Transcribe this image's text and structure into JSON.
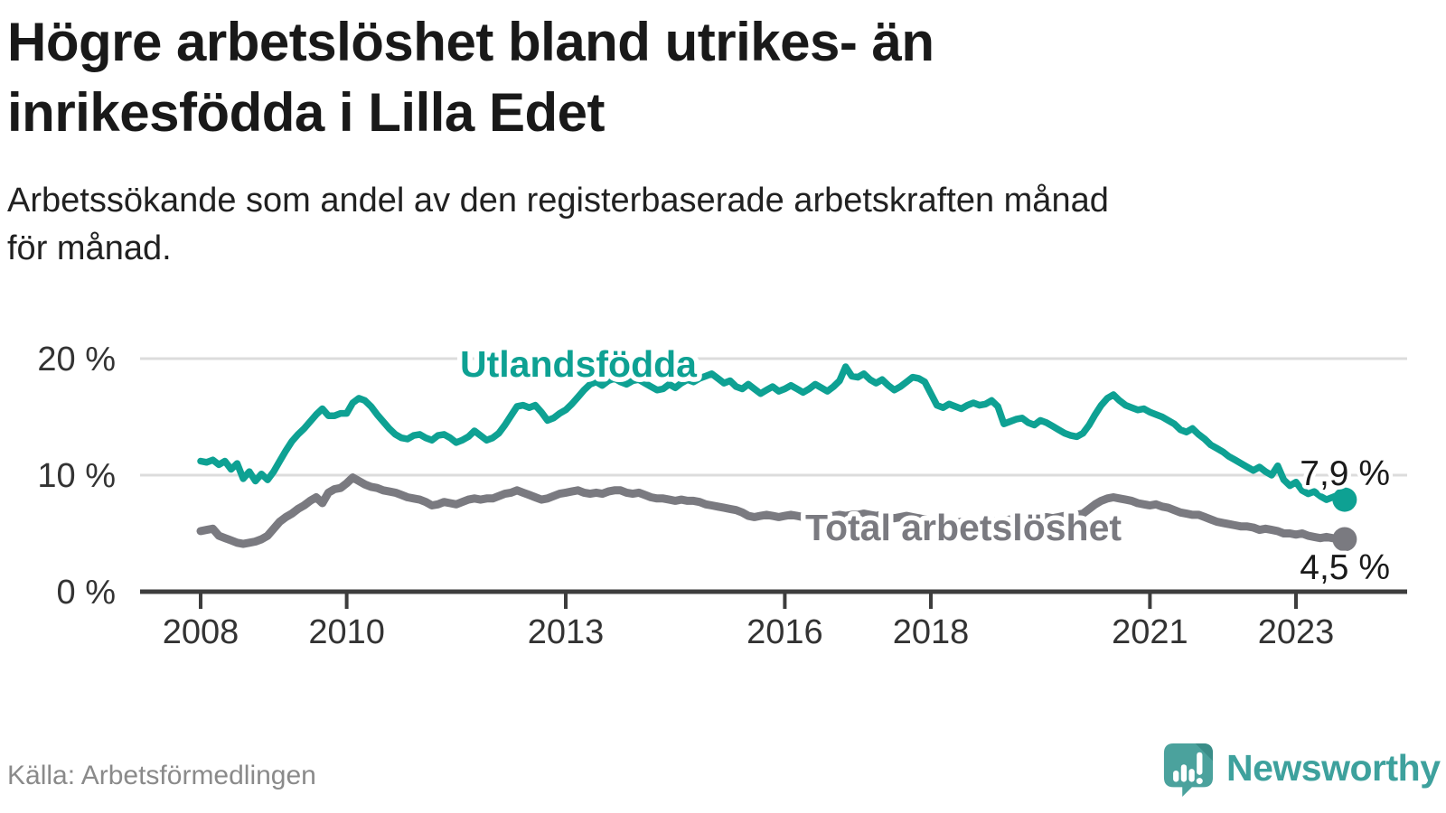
{
  "header": {
    "title_line1": "Högre arbetslöshet bland utrikes- än",
    "title_line2": "inrikesfödda i Lilla Edet",
    "subtitle_line1": "Arbetssökande som andel av den registerbaserade arbetskraften månad",
    "subtitle_line2": "för månad."
  },
  "footer": {
    "source": "Källa: Arbetsförmedlingen",
    "brand": "Newsworthy"
  },
  "colors": {
    "title": "#191919",
    "subtitle": "#212121",
    "axis_text": "#333333",
    "axis_line": "#3d3d3d",
    "gridline": "#dcdcdc",
    "foreign_born_line": "#0EA193",
    "total_line": "#7A7A80",
    "value_label": "#1a1a1a",
    "source_text": "#8a8a8a",
    "brand_teal": "#4BA29D",
    "brand_teal_dark": "#3A8D88",
    "brand_text": "#3EA19D"
  },
  "chart_data": {
    "type": "line",
    "title": "Högre arbetslöshet bland utrikes- än inrikesfödda i Lilla Edet",
    "subtitle": "Arbetssökande som andel av den registerbaserade arbetskraften månad för månad.",
    "xlabel": "",
    "ylabel": "",
    "unit": "%",
    "grid": "horizontal",
    "legend_position": "inline-labels",
    "x_start": {
      "year": 2008,
      "month": 1
    },
    "x_frequency": "monthly",
    "x_ticks": [
      2008,
      2010,
      2013,
      2016,
      2018,
      2021,
      2023
    ],
    "x_tick_labels": [
      "2008",
      "2010",
      "2013",
      "2016",
      "2018",
      "2021",
      "2023"
    ],
    "y_ticks": [
      0,
      10,
      20
    ],
    "y_tick_labels": [
      "0 %",
      "10 %",
      "20 %"
    ],
    "ylim": [
      0,
      21.5
    ],
    "series": [
      {
        "name": "Utlandsfödda",
        "color": "#0EA193",
        "end_value": 7.9,
        "end_label": "7,9 %",
        "values": [
          11.2,
          11.1,
          11.3,
          10.9,
          11.2,
          10.5,
          11.0,
          9.7,
          10.3,
          9.5,
          10.1,
          9.6,
          10.3,
          11.2,
          12.1,
          12.9,
          13.5,
          14.0,
          14.6,
          15.2,
          15.7,
          15.1,
          15.1,
          15.3,
          15.3,
          16.2,
          16.6,
          16.4,
          15.9,
          15.2,
          14.6,
          14.0,
          13.5,
          13.2,
          13.1,
          13.4,
          13.5,
          13.2,
          13.0,
          13.4,
          13.5,
          13.2,
          12.8,
          13.0,
          13.3,
          13.8,
          13.4,
          13.0,
          13.2,
          13.6,
          14.3,
          15.1,
          15.9,
          16.0,
          15.8,
          16.0,
          15.4,
          14.7,
          14.9,
          15.3,
          15.6,
          16.1,
          16.7,
          17.3,
          17.8,
          18.0,
          17.7,
          18.1,
          18.3,
          18.0,
          17.8,
          18.1,
          18.2,
          17.9,
          17.6,
          17.3,
          17.4,
          17.8,
          17.5,
          17.9,
          18.2,
          18.0,
          18.3,
          18.5,
          18.7,
          18.3,
          17.9,
          18.1,
          17.6,
          17.4,
          17.8,
          17.4,
          17.0,
          17.3,
          17.6,
          17.2,
          17.4,
          17.7,
          17.4,
          17.1,
          17.4,
          17.8,
          17.5,
          17.2,
          17.6,
          18.1,
          19.3,
          18.5,
          18.4,
          18.7,
          18.2,
          17.9,
          18.2,
          17.7,
          17.3,
          17.6,
          18.0,
          18.4,
          18.3,
          18.0,
          17.0,
          16.0,
          15.8,
          16.1,
          15.9,
          15.7,
          16.0,
          16.2,
          16.0,
          16.1,
          16.4,
          15.9,
          14.4,
          14.6,
          14.8,
          14.9,
          14.5,
          14.3,
          14.7,
          14.5,
          14.2,
          13.9,
          13.6,
          13.4,
          13.3,
          13.6,
          14.3,
          15.2,
          16.0,
          16.6,
          16.9,
          16.4,
          16.0,
          15.8,
          15.6,
          15.7,
          15.4,
          15.2,
          15.0,
          14.7,
          14.4,
          13.9,
          13.7,
          14.0,
          13.5,
          13.1,
          12.6,
          12.3,
          12.0,
          11.6,
          11.3,
          11.0,
          10.7,
          10.4,
          10.7,
          10.3,
          10.0,
          10.8,
          9.6,
          9.1,
          9.4,
          8.7,
          8.4,
          8.6,
          8.2,
          7.9,
          8.1,
          8.3,
          7.9
        ]
      },
      {
        "name": "Total arbetslöshet",
        "color": "#7A7A80",
        "end_value": 4.5,
        "end_label": "4,5 %",
        "values": [
          5.2,
          5.3,
          5.4,
          4.8,
          4.6,
          4.4,
          4.2,
          4.1,
          4.2,
          4.3,
          4.5,
          4.8,
          5.4,
          6.0,
          6.4,
          6.7,
          7.1,
          7.4,
          7.8,
          8.1,
          7.6,
          8.5,
          8.8,
          8.9,
          9.3,
          9.8,
          9.5,
          9.2,
          9.0,
          8.9,
          8.7,
          8.6,
          8.5,
          8.3,
          8.1,
          8.0,
          7.9,
          7.7,
          7.4,
          7.5,
          7.7,
          7.6,
          7.5,
          7.7,
          7.9,
          8.0,
          7.9,
          8.0,
          8.0,
          8.2,
          8.4,
          8.5,
          8.7,
          8.5,
          8.3,
          8.1,
          7.9,
          8.0,
          8.2,
          8.4,
          8.5,
          8.6,
          8.7,
          8.5,
          8.4,
          8.5,
          8.4,
          8.6,
          8.7,
          8.7,
          8.5,
          8.4,
          8.5,
          8.3,
          8.1,
          8.0,
          8.0,
          7.9,
          7.8,
          7.9,
          7.8,
          7.8,
          7.7,
          7.5,
          7.4,
          7.3,
          7.2,
          7.1,
          7.0,
          6.8,
          6.5,
          6.4,
          6.5,
          6.6,
          6.5,
          6.4,
          6.5,
          6.6,
          6.5,
          6.4,
          6.3,
          6.4,
          6.5,
          6.4,
          6.5,
          6.6,
          6.5,
          6.6,
          6.6,
          6.7,
          6.6,
          6.5,
          6.6,
          6.4,
          6.3,
          6.4,
          6.5,
          6.4,
          6.3,
          6.2,
          6.1,
          6.0,
          6.1,
          6.0,
          5.9,
          6.0,
          6.1,
          6.0,
          5.9,
          6.0,
          6.1,
          6.0,
          6.1,
          6.2,
          6.1,
          6.2,
          6.3,
          6.2,
          6.3,
          6.4,
          6.3,
          6.4,
          6.5,
          6.5,
          6.6,
          6.7,
          7.1,
          7.5,
          7.8,
          8.0,
          8.1,
          8.0,
          7.9,
          7.8,
          7.6,
          7.5,
          7.4,
          7.5,
          7.3,
          7.2,
          7.0,
          6.8,
          6.7,
          6.6,
          6.6,
          6.4,
          6.2,
          6.0,
          5.9,
          5.8,
          5.7,
          5.6,
          5.6,
          5.5,
          5.3,
          5.4,
          5.3,
          5.2,
          5.0,
          5.0,
          4.9,
          5.0,
          4.8,
          4.7,
          4.6,
          4.7,
          4.6,
          4.5,
          4.5
        ]
      }
    ]
  }
}
